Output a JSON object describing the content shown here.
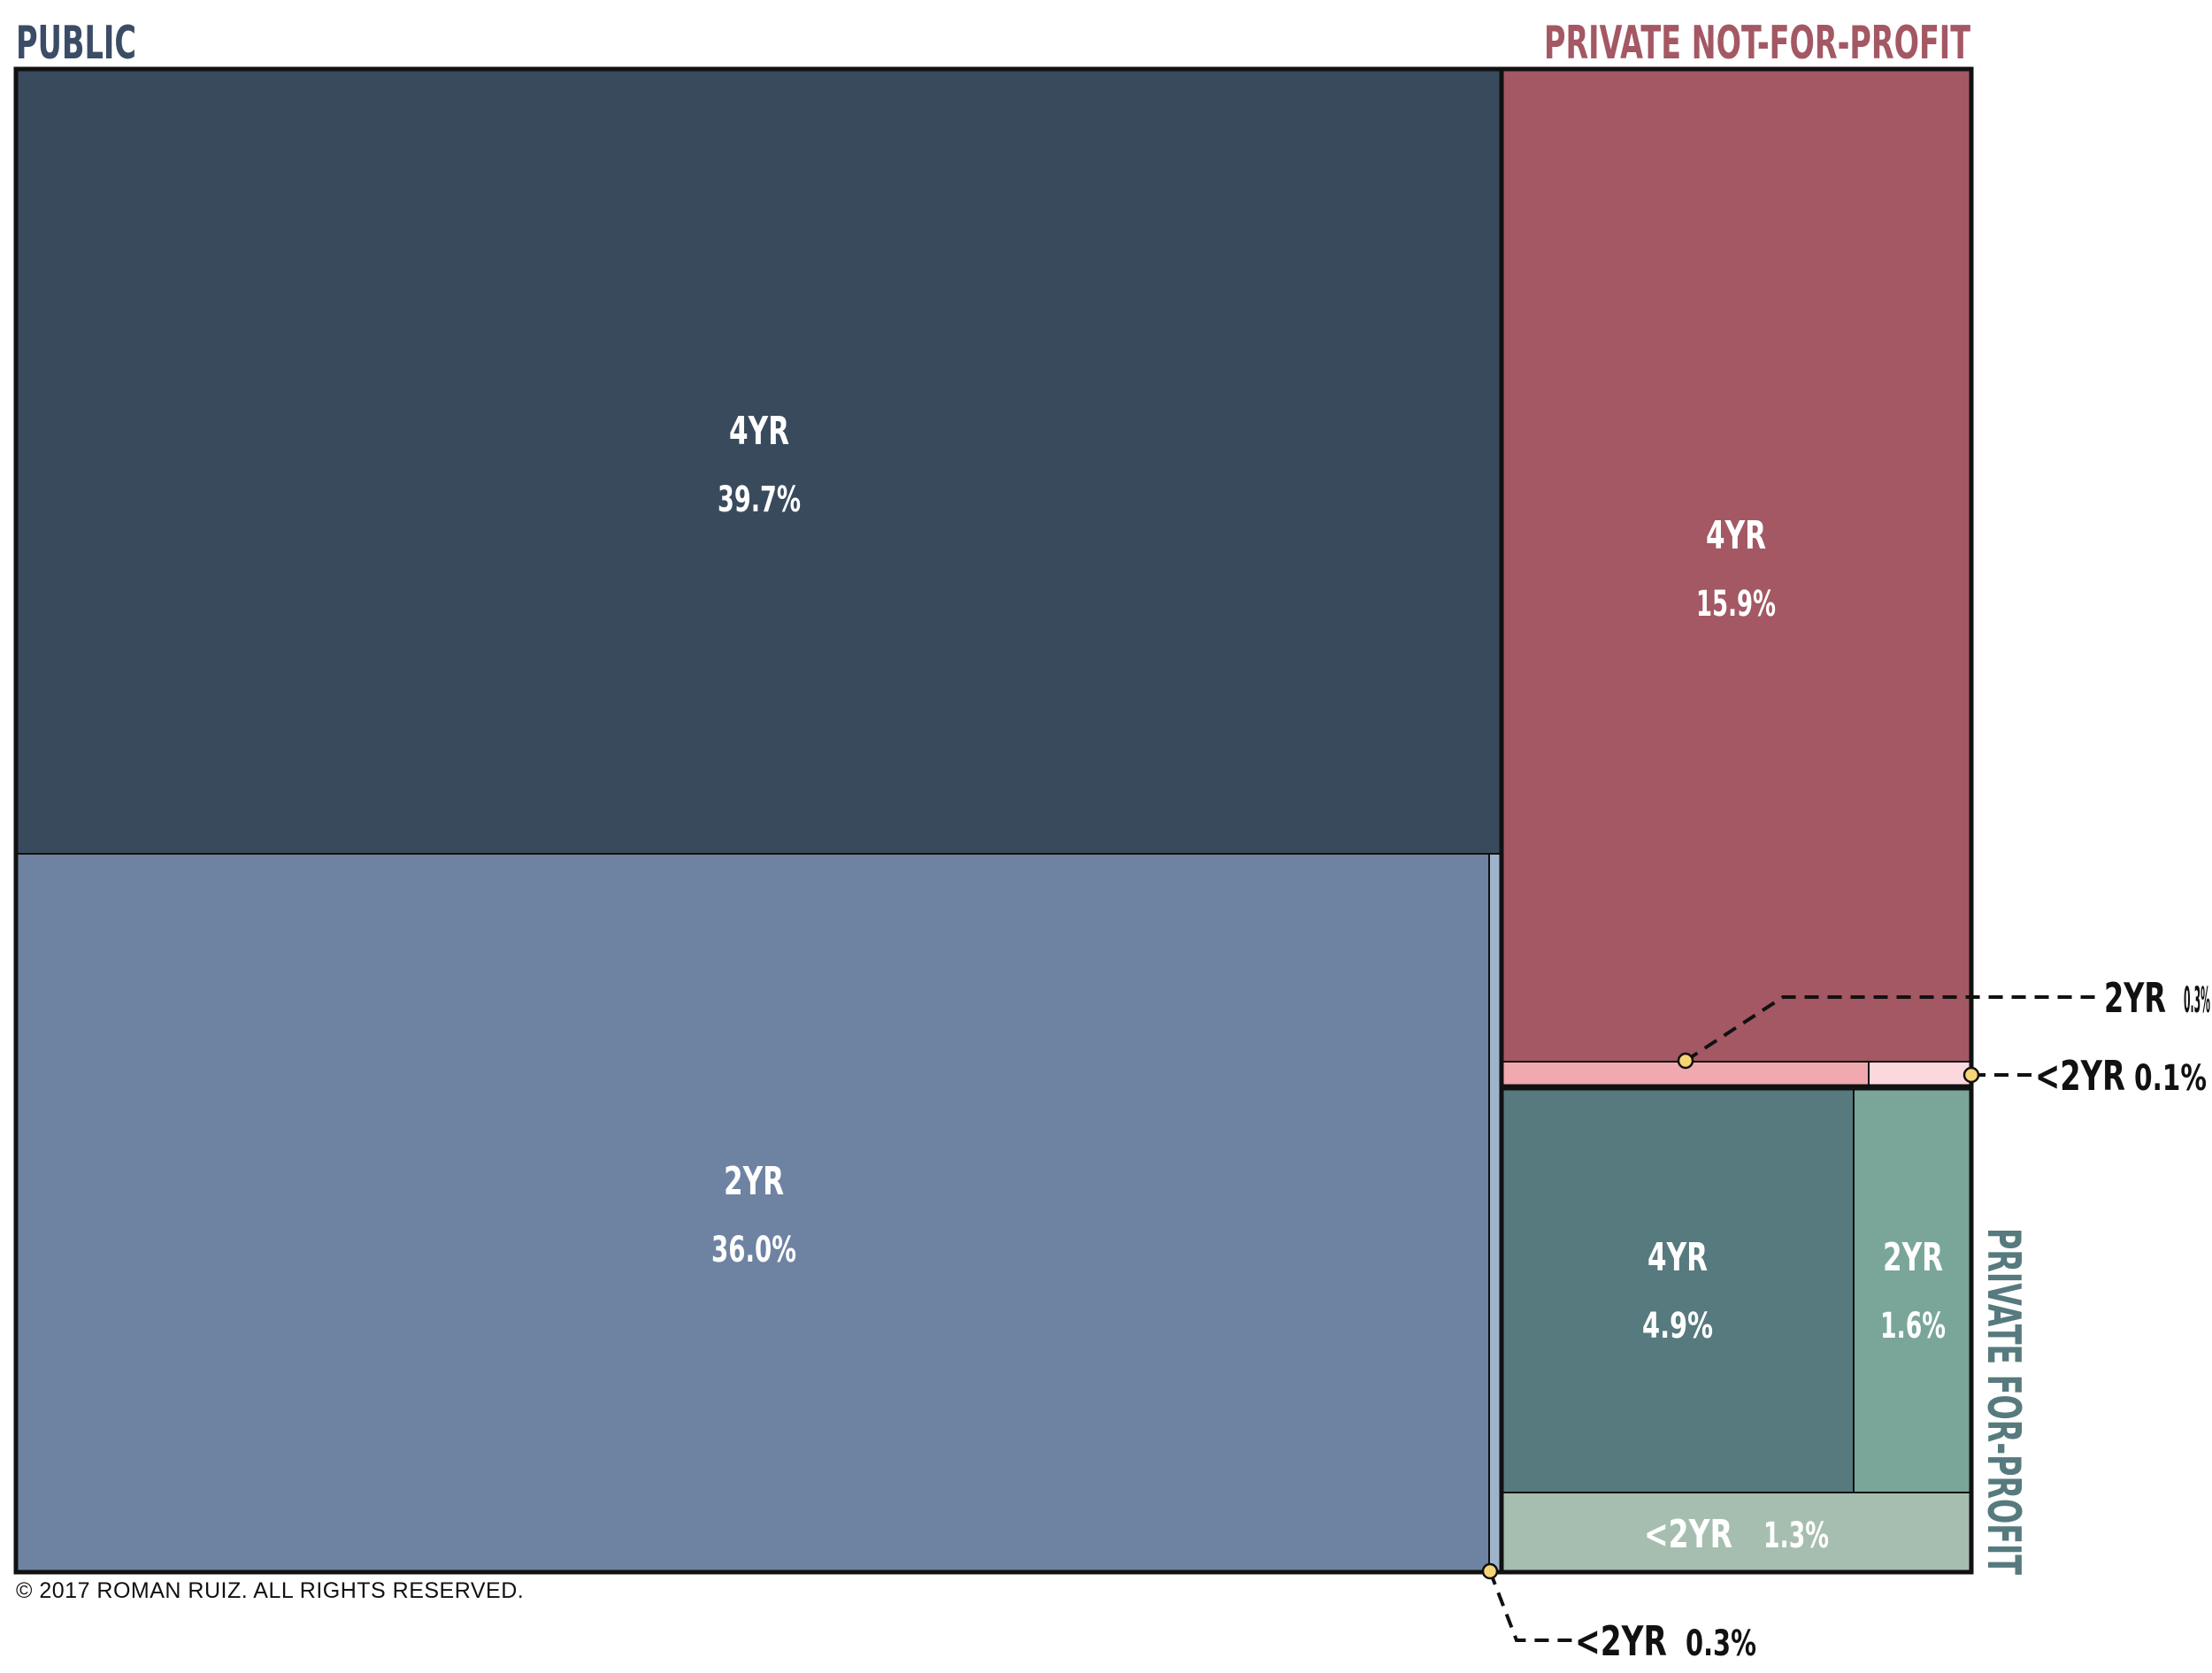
{
  "chart_data": {
    "type": "treemap",
    "groups": [
      {
        "name": "PUBLIC",
        "color": "#34495e",
        "segments": [
          {
            "label": "4YR",
            "percent": "39.7%",
            "value": 39.7,
            "color": "#394a5d"
          },
          {
            "label": "2YR",
            "percent": "36.0%",
            "value": 36.0,
            "color": "#6e83a2"
          },
          {
            "label": "<2YR",
            "percent": "0.3%",
            "value": 0.3,
            "color": "#9fb3cb"
          }
        ]
      },
      {
        "name": "PRIVATE NOT-FOR-PROFIT",
        "color": "#a35864",
        "segments": [
          {
            "label": "4YR",
            "percent": "15.9%",
            "value": 15.9,
            "color": "#a35864"
          },
          {
            "label": "2YR",
            "percent": "0.3%",
            "value": 0.3,
            "color": "#f0a9ae"
          },
          {
            "label": "<2YR",
            "percent": "0.1%",
            "value": 0.1,
            "color": "#fbd8de"
          }
        ]
      },
      {
        "name": "PRIVATE FOR-PROFIT",
        "color": "#567a7e",
        "segments": [
          {
            "label": "4YR",
            "percent": "4.9%",
            "value": 4.9,
            "color": "#567a7e"
          },
          {
            "label": "2YR",
            "percent": "1.6%",
            "value": 1.6,
            "color": "#79a699"
          },
          {
            "label": "<2YR",
            "percent": "1.3%",
            "value": 1.3,
            "color": "#a6beaf"
          }
        ]
      }
    ]
  },
  "copyright": "© 2017 ROMAN RUIZ. ALL RIGHTS RESERVED.",
  "colors": {
    "border": "#111111",
    "marker": "#f5d576",
    "text_light": "#ffffff",
    "text_dark": "#111111"
  }
}
